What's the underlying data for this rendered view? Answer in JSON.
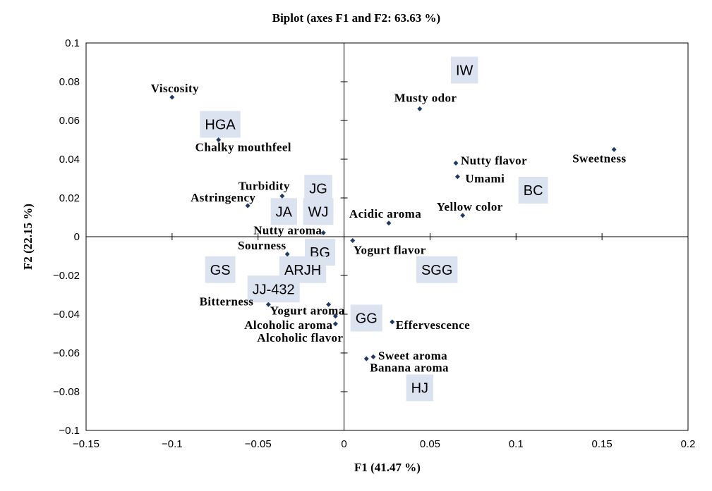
{
  "chart_data": {
    "type": "scatter",
    "title": "Biplot (axes F1 and F2: 63.63 %)",
    "xlabel": "F1 (41.47 %)",
    "ylabel": "F2 (22.15 %)",
    "xlim": [
      -0.15,
      0.2
    ],
    "ylim": [
      -0.1,
      0.1
    ],
    "x_ticks": [
      "-0.15",
      "-0.1",
      "-0.05",
      "0",
      "0.05",
      "0.1",
      "0.15",
      "0.2"
    ],
    "y_ticks": [
      "0.1",
      "0.08",
      "0.06",
      "0.04",
      "0.02",
      "0",
      "-0.02",
      "-0.04",
      "-0.06",
      "-0.08",
      "-0.1"
    ],
    "grid": false,
    "legend": "none",
    "colors": {
      "variable_marker": "#1f3864",
      "observation_box": "#dbe3f1"
    },
    "variables": [
      {
        "label": "Viscosity",
        "x": -0.1,
        "y": 0.072
      },
      {
        "label": "Chalky mouthfeel",
        "x": -0.073,
        "y": 0.05
      },
      {
        "label": "Musty odor",
        "x": 0.044,
        "y": 0.066
      },
      {
        "label": "Nutty flavor",
        "x": 0.065,
        "y": 0.038
      },
      {
        "label": "Umami",
        "x": 0.066,
        "y": 0.031
      },
      {
        "label": "Sweetness",
        "x": 0.157,
        "y": 0.045
      },
      {
        "label": "Yellow color",
        "x": 0.069,
        "y": 0.011
      },
      {
        "label": "Acidic aroma",
        "x": 0.026,
        "y": 0.007
      },
      {
        "label": "Turbidity",
        "x": -0.036,
        "y": 0.021
      },
      {
        "label": "Astringency",
        "x": -0.056,
        "y": 0.016
      },
      {
        "label": "Nutty aroma",
        "x": -0.012,
        "y": 0.002
      },
      {
        "label": "Sourness",
        "x": -0.033,
        "y": -0.009
      },
      {
        "label": "Yogurt flavor",
        "x": 0.005,
        "y": -0.002
      },
      {
        "label": "Bitterness",
        "x": -0.044,
        "y": -0.035
      },
      {
        "label": "Yogurt aroma",
        "x": -0.009,
        "y": -0.035
      },
      {
        "label": "Alcoholic aroma",
        "x": -0.005,
        "y": -0.045
      },
      {
        "label": "Alcoholic flavor",
        "x": -0.005,
        "y": -0.041
      },
      {
        "label": "Effervescence",
        "x": 0.028,
        "y": -0.044
      },
      {
        "label": "Sweet aroma",
        "x": 0.017,
        "y": -0.062
      },
      {
        "label": "Banana aroma",
        "x": 0.013,
        "y": -0.063
      }
    ],
    "observations": [
      {
        "label": "IW",
        "x": 0.07,
        "y": 0.086
      },
      {
        "label": "HGA",
        "x": -0.072,
        "y": 0.058
      },
      {
        "label": "JG",
        "x": -0.015,
        "y": 0.025
      },
      {
        "label": "JA",
        "x": -0.035,
        "y": 0.013
      },
      {
        "label": "WJ",
        "x": -0.015,
        "y": 0.013
      },
      {
        "label": "BC",
        "x": 0.11,
        "y": 0.024
      },
      {
        "label": "BG",
        "x": -0.014,
        "y": -0.008
      },
      {
        "label": "GS",
        "x": -0.072,
        "y": -0.017
      },
      {
        "label": "ARJH",
        "x": -0.024,
        "y": -0.017
      },
      {
        "label": "SGG",
        "x": 0.054,
        "y": -0.017
      },
      {
        "label": "JJ-432",
        "x": -0.041,
        "y": -0.027
      },
      {
        "label": "GG",
        "x": 0.013,
        "y": -0.042
      },
      {
        "label": "HJ",
        "x": 0.044,
        "y": -0.078
      }
    ]
  }
}
